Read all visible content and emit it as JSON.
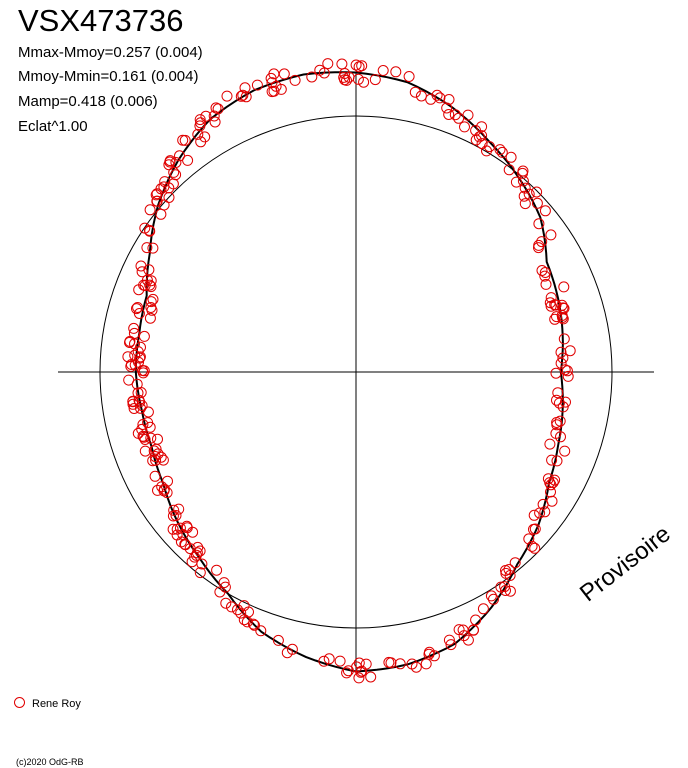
{
  "title": "VSX473736",
  "stats": [
    "Mmax-Mmoy=0.257 (0.004)",
    "Mmoy-Mmin=0.161 (0.004)",
    "Mamp=0.418 (0.006)",
    "Eclat^1.00"
  ],
  "watermark": "Provisoire",
  "copyright": "(c)2020 OdG-RB",
  "chart_data": {
    "type": "scatter",
    "coordinate_system": "polar phase plot",
    "reference_circle_radius": 1.0,
    "grid": true,
    "legend_position": "bottom-left",
    "series": [
      {
        "name": "Rene Roy",
        "color": "#e00000",
        "marker": "open-circle",
        "phase_deg": [
          0,
          10,
          20,
          30,
          40,
          50,
          60,
          70,
          80,
          90,
          100,
          110,
          120,
          130,
          140,
          150,
          160,
          170,
          180,
          190,
          200,
          210,
          220,
          230,
          240,
          250,
          260,
          270,
          280,
          290,
          300,
          310,
          320,
          330,
          340,
          350
        ],
        "radius": [
          1.17,
          1.15,
          1.1,
          1.04,
          0.99,
          0.94,
          0.86,
          0.84,
          0.82,
          0.8,
          0.82,
          0.84,
          0.87,
          0.93,
          0.98,
          1.06,
          1.13,
          1.16,
          1.17,
          1.13,
          1.08,
          1.0,
          0.95,
          0.91,
          0.87,
          0.85,
          0.85,
          0.86,
          0.86,
          0.87,
          0.93,
          1.01,
          1.08,
          1.14,
          1.17,
          1.18
        ]
      }
    ],
    "model_curve": {
      "color": "#000000",
      "phase_deg": [
        0,
        10,
        20,
        30,
        40,
        50,
        60,
        70,
        80,
        90,
        100,
        110,
        120,
        130,
        140,
        150,
        160,
        170,
        180,
        190,
        200,
        210,
        220,
        230,
        240,
        250,
        260,
        270,
        280,
        290,
        300,
        310,
        320,
        330,
        340,
        350
      ],
      "radius": [
        1.17,
        1.15,
        1.1,
        1.04,
        0.99,
        0.94,
        0.86,
        0.84,
        0.82,
        0.8,
        0.82,
        0.84,
        0.87,
        0.93,
        0.98,
        1.06,
        1.13,
        1.16,
        1.17,
        1.13,
        1.08,
        1.0,
        0.95,
        0.91,
        0.87,
        0.85,
        0.85,
        0.86,
        0.86,
        0.87,
        0.93,
        1.01,
        1.08,
        1.14,
        1.17,
        1.18
      ]
    }
  }
}
